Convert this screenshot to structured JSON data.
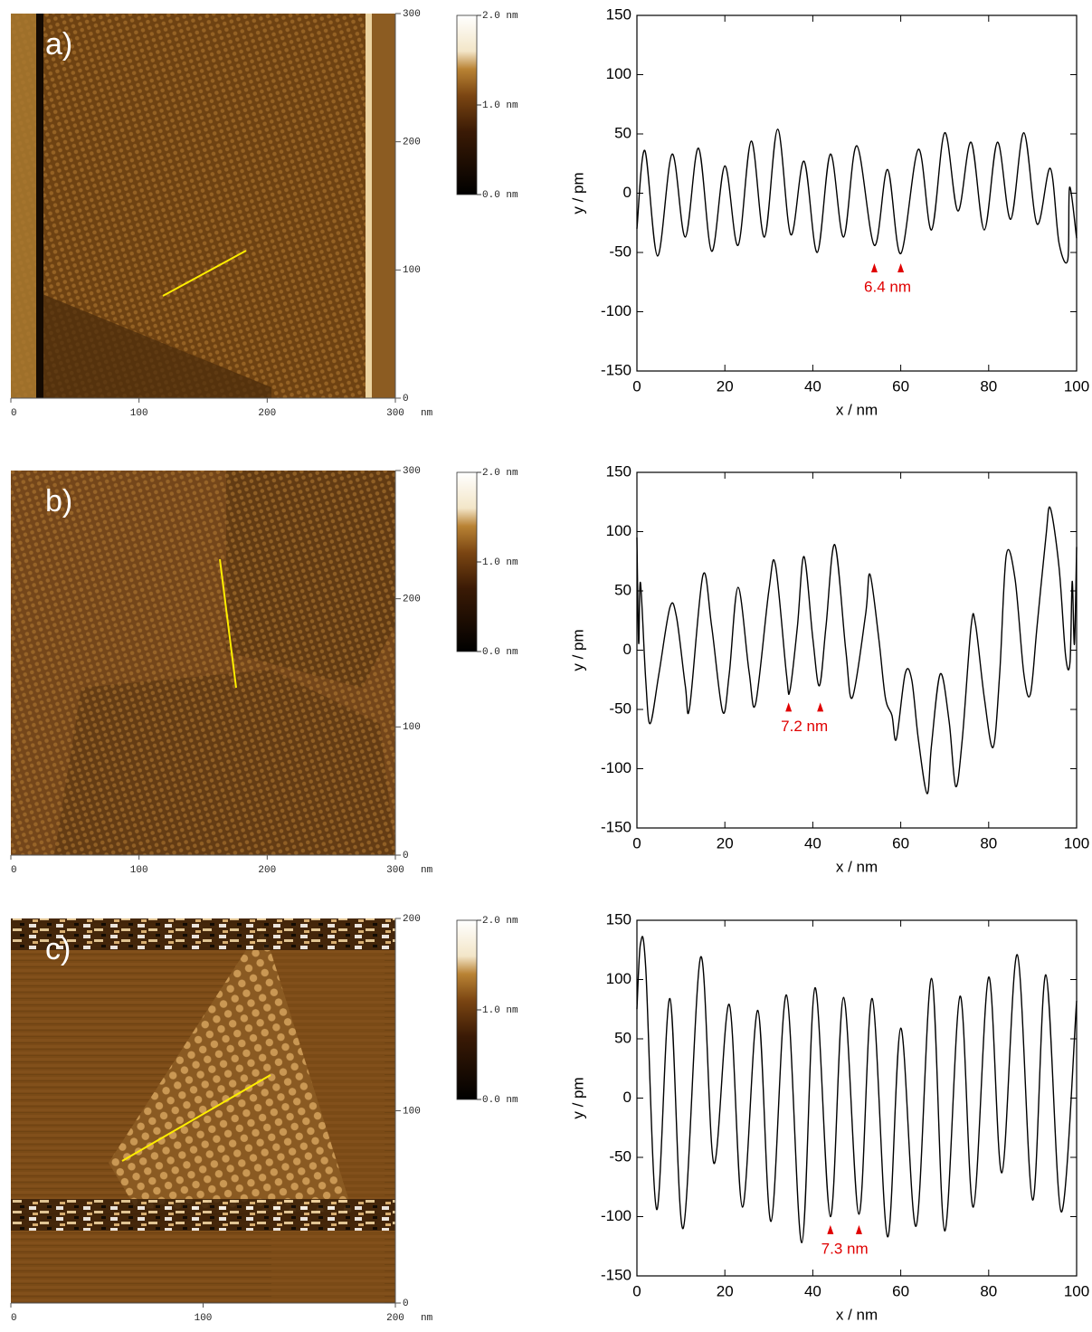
{
  "chart_data": [
    {
      "type": "image",
      "label": "a)",
      "xlim": [
        0,
        300
      ],
      "xticks": [
        0,
        100,
        200,
        300
      ],
      "ylim": [
        0,
        300
      ],
      "yticks": [
        0,
        100,
        200,
        300
      ],
      "unit": "nm",
      "colorbar": {
        "lim": [
          0,
          2
        ],
        "ticks": [
          {
            "value": 0,
            "label": "0.0 nm"
          },
          {
            "value": 1,
            "label": "1.0 nm"
          },
          {
            "value": 2,
            "label": "2.0 nm"
          }
        ]
      }
    },
    {
      "type": "line",
      "xlabel": "x / nm",
      "ylabel": "y / pm",
      "xlim": [
        0,
        100
      ],
      "xticks": [
        0,
        20,
        40,
        60,
        80,
        100
      ],
      "ylim": [
        -150,
        150
      ],
      "yticks": [
        -150,
        -100,
        -50,
        0,
        50,
        100,
        150
      ],
      "color": "#000000",
      "x": [
        0,
        1.8,
        4.7,
        8,
        11,
        14,
        17,
        20,
        23,
        26,
        29,
        32,
        35,
        38,
        41,
        44,
        47,
        50,
        54,
        57,
        60,
        64,
        67,
        70,
        73,
        76,
        79,
        82,
        85,
        88,
        91,
        94,
        96,
        98,
        98.4,
        100
      ],
      "values": [
        -30,
        36,
        -53,
        33,
        -37,
        38,
        -49,
        23,
        -44,
        44,
        -37,
        54,
        -35,
        27,
        -50,
        33,
        -37,
        40,
        -44,
        20,
        -51,
        37,
        -31,
        51,
        -15,
        43,
        -31,
        43,
        -22,
        51,
        -26,
        21,
        -42,
        -56,
        5,
        -38
      ],
      "annotation": {
        "text": "6.4 nm",
        "x": [
          54,
          60
        ],
        "y": -63,
        "color": "#e00000"
      }
    },
    {
      "type": "image",
      "label": "b)",
      "xlim": [
        0,
        300
      ],
      "xticks": [
        0,
        100,
        200,
        300
      ],
      "ylim": [
        0,
        300
      ],
      "yticks": [
        0,
        100,
        200,
        300
      ],
      "unit": "nm",
      "colorbar": {
        "lim": [
          0,
          2
        ],
        "ticks": [
          {
            "value": 0,
            "label": "0.0 nm"
          },
          {
            "value": 1,
            "label": "1.0 nm"
          },
          {
            "value": 2,
            "label": "2.0 nm"
          }
        ]
      }
    },
    {
      "type": "line",
      "xlabel": "x / nm",
      "ylabel": "y / pm",
      "xlim": [
        0,
        100
      ],
      "xticks": [
        0,
        20,
        40,
        60,
        80,
        100
      ],
      "ylim": [
        -150,
        150
      ],
      "yticks": [
        -150,
        -100,
        -50,
        0,
        50,
        100,
        150
      ],
      "color": "#000000",
      "x": [
        0,
        0.4,
        0.8,
        2,
        3,
        5,
        7.5,
        9,
        11,
        12,
        15,
        17,
        19.5,
        21,
        23,
        25.5,
        27,
        30,
        31.5,
        34,
        34.8,
        36.5,
        38,
        40,
        41.5,
        43,
        45,
        47.5,
        49,
        52,
        53,
        55,
        56.5,
        58,
        59,
        61,
        62.5,
        64,
        66,
        67,
        69,
        71,
        72.5,
        74,
        76,
        77,
        79,
        81,
        82.5,
        84,
        86,
        88,
        89.5,
        91,
        93,
        94,
        96,
        97.5,
        98.5,
        99,
        99.5,
        100
      ],
      "values": [
        95,
        6,
        57,
        -25,
        -62,
        -20,
        36,
        28,
        -30,
        -48,
        63,
        20,
        -52,
        -20,
        53,
        -18,
        -45,
        50,
        72,
        -20,
        -34,
        20,
        79,
        10,
        -30,
        20,
        89,
        0,
        -40,
        30,
        64,
        10,
        -40,
        -55,
        -75,
        -20,
        -25,
        -75,
        -121,
        -80,
        -20,
        -60,
        -115,
        -75,
        20,
        22,
        -40,
        -82,
        -20,
        80,
        60,
        -20,
        -37,
        20,
        95,
        120,
        70,
        -5,
        -10,
        58,
        5,
        87
      ],
      "annotation": {
        "text": "7.2 nm",
        "x": [
          34.5,
          41.7
        ],
        "y": -48,
        "color": "#e00000"
      }
    },
    {
      "type": "image",
      "label": "c)",
      "xlim": [
        0,
        200
      ],
      "xticks": [
        0,
        100,
        200
      ],
      "ylim": [
        0,
        200
      ],
      "yticks": [
        0,
        100,
        200
      ],
      "unit": "nm",
      "colorbar": {
        "lim": [
          0,
          2
        ],
        "ticks": [
          {
            "value": 0,
            "label": "0.0 nm"
          },
          {
            "value": 1,
            "label": "1.0 nm"
          },
          {
            "value": 2,
            "label": "2.0 nm"
          }
        ]
      }
    },
    {
      "type": "line",
      "xlabel": "x / nm",
      "ylabel": "y / pm",
      "xlim": [
        0,
        100
      ],
      "xticks": [
        0,
        20,
        40,
        60,
        80,
        100
      ],
      "ylim": [
        -150,
        150
      ],
      "yticks": [
        -150,
        -100,
        -50,
        0,
        50,
        100,
        150
      ],
      "color": "#000000",
      "x": [
        0,
        0.8,
        2,
        4.5,
        7.5,
        10.5,
        14.5,
        17.5,
        21,
        24,
        27.5,
        30.5,
        34,
        37.5,
        40.5,
        44,
        47,
        50.5,
        53.5,
        57,
        60,
        63.5,
        67,
        70,
        73.5,
        76.5,
        80,
        83,
        86.5,
        90,
        93,
        96.5,
        100
      ],
      "values": [
        75,
        130,
        110,
        -94,
        84,
        -110,
        119,
        -55,
        79,
        -92,
        74,
        -104,
        87,
        -122,
        93,
        -100,
        85,
        -98,
        84,
        -117,
        59,
        -108,
        101,
        -112,
        86,
        -92,
        102,
        -63,
        121,
        -86,
        104,
        -96,
        82
      ],
      "annotation": {
        "text": "7.3 nm",
        "x": [
          44,
          50.5
        ],
        "y": -111,
        "color": "#e00000"
      }
    }
  ]
}
